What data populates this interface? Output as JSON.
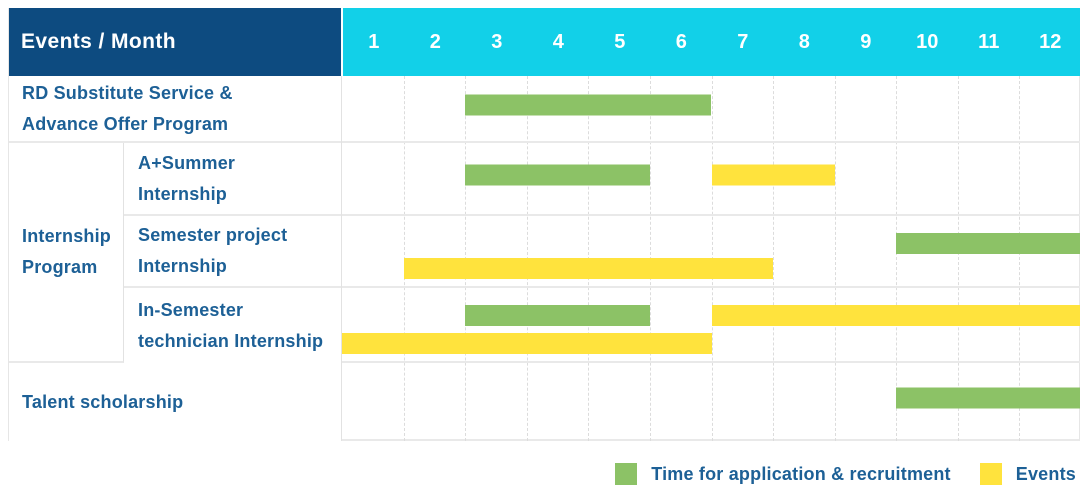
{
  "header": {
    "title": "Events / Month",
    "months": [
      "1",
      "2",
      "3",
      "4",
      "5",
      "6",
      "7",
      "8",
      "9",
      "10",
      "11",
      "12"
    ]
  },
  "colors": {
    "header_navy": "#0d4b80",
    "header_cyan": "#12d0e8",
    "label_blue": "#1d6096",
    "bar_green": "#8cc266",
    "bar_yellow": "#ffe33d"
  },
  "legend": [
    {
      "id": "application",
      "label": "Time for application & recruitment",
      "color": "#8cc266"
    },
    {
      "id": "events",
      "label": "Events",
      "color": "#ffe33d"
    }
  ],
  "chart_data": {
    "type": "bar",
    "subtype": "gantt",
    "title": "Events / Month",
    "x_axis_months": [
      1,
      2,
      3,
      4,
      5,
      6,
      7,
      8,
      9,
      10,
      11,
      12
    ],
    "grid": "dashed-vertical-month-lines",
    "legend_position": "bottom-right",
    "groups": [
      {
        "label": "Internship\nProgram",
        "row_indexes": [
          1,
          2,
          3
        ]
      }
    ],
    "rows": [
      {
        "group": null,
        "label": "RD Substitute Service &\nAdvance Offer Program",
        "bars": [
          {
            "series_id": "application",
            "series": "Time for application & recruitment",
            "start_month": 3,
            "end_month": 6,
            "lane": "center"
          }
        ]
      },
      {
        "group": "Internship Program",
        "label": "A+Summer\nInternship",
        "bars": [
          {
            "series_id": "application",
            "series": "Time for application & recruitment",
            "start_month": 3,
            "end_month": 5,
            "lane": "center"
          },
          {
            "series_id": "events",
            "series": "Events",
            "start_month": 7,
            "end_month": 8,
            "lane": "center"
          }
        ]
      },
      {
        "group": "Internship Program",
        "label": "Semester project\nInternship",
        "bars": [
          {
            "series_id": "application",
            "series": "Time for application & recruitment",
            "start_month": 10,
            "end_month": 12,
            "lane": "top"
          },
          {
            "series_id": "events",
            "series": "Events",
            "start_month": 2,
            "end_month": 7,
            "lane": "bottom"
          }
        ]
      },
      {
        "group": "Internship Program",
        "label": "In-Semester\ntechnician Internship",
        "bars": [
          {
            "series_id": "application",
            "series": "Time for application & recruitment",
            "start_month": 3,
            "end_month": 5,
            "lane": "top"
          },
          {
            "series_id": "events",
            "series": "Events",
            "start_month": 7,
            "end_month": 12,
            "lane": "top"
          },
          {
            "series_id": "events",
            "series": "Events",
            "start_month": 1,
            "end_month": 6,
            "lane": "bottom"
          }
        ]
      },
      {
        "group": null,
        "label": "Talent scholarship",
        "bars": [
          {
            "series_id": "application",
            "series": "Time for application & recruitment",
            "start_month": 10,
            "end_month": 12,
            "lane": "center"
          }
        ]
      }
    ]
  }
}
